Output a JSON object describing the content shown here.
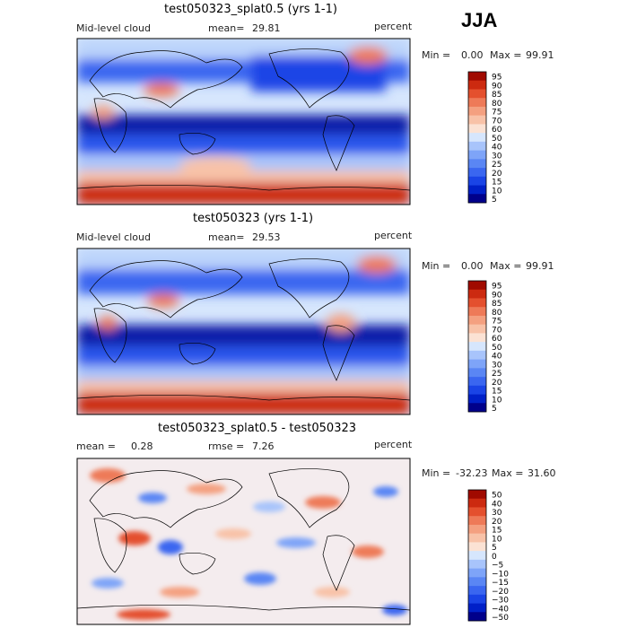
{
  "season": "JJA",
  "panels": [
    {
      "title": "test050323_splat0.5 (yrs 1-1)",
      "left_label": "Mid-level cloud",
      "stat_label": "mean=",
      "stat_value": "29.81",
      "units": "percent",
      "min_label": "Min =",
      "min_value": "0.00",
      "max_label": "Max =",
      "max_value": "99.91",
      "colorbar_levels": [
        "95",
        "90",
        "85",
        "80",
        "75",
        "70",
        "60",
        "50",
        "40",
        "30",
        "25",
        "20",
        "15",
        "10",
        "5"
      ]
    },
    {
      "title": "test050323 (yrs 1-1)",
      "left_label": "Mid-level cloud",
      "stat_label": "mean=",
      "stat_value": "29.53",
      "units": "percent",
      "min_label": "Min =",
      "min_value": "0.00",
      "max_label": "Max =",
      "max_value": "99.91",
      "colorbar_levels": [
        "95",
        "90",
        "85",
        "80",
        "75",
        "70",
        "60",
        "50",
        "40",
        "30",
        "25",
        "20",
        "15",
        "10",
        "5"
      ]
    },
    {
      "title": "test050323_splat0.5 - test050323",
      "left_label": "mean =",
      "left_value": "0.28",
      "stat_label": "rmse =",
      "stat_value": "7.26",
      "units": "percent",
      "min_label": "Min =",
      "min_value": "-32.23",
      "max_label": "Max =",
      "max_value": "31.60",
      "colorbar_levels": [
        "50",
        "40",
        "30",
        "20",
        "15",
        "10",
        "5",
        "0",
        "−5",
        "−10",
        "−15",
        "−20",
        "−30",
        "−40",
        "−50"
      ]
    }
  ],
  "chart_data": [
    {
      "type": "heatmap",
      "title": "test050323_splat0.5 (yrs 1-1)",
      "variable": "Mid-level cloud",
      "units": "percent",
      "mean": 29.81,
      "min": 0.0,
      "max": 99.91,
      "levels": [
        5,
        10,
        15,
        20,
        25,
        30,
        40,
        50,
        60,
        70,
        75,
        80,
        85,
        90,
        95
      ]
    },
    {
      "type": "heatmap",
      "title": "test050323 (yrs 1-1)",
      "variable": "Mid-level cloud",
      "units": "percent",
      "mean": 29.53,
      "min": 0.0,
      "max": 99.91,
      "levels": [
        5,
        10,
        15,
        20,
        25,
        30,
        40,
        50,
        60,
        70,
        75,
        80,
        85,
        90,
        95
      ]
    },
    {
      "type": "heatmap",
      "title": "test050323_splat0.5 - test050323",
      "units": "percent",
      "mean": 0.28,
      "rmse": 7.26,
      "min": -32.23,
      "max": 31.6,
      "levels": [
        -50,
        -40,
        -30,
        -20,
        -15,
        -10,
        -5,
        0,
        5,
        10,
        15,
        20,
        30,
        40,
        50
      ]
    }
  ],
  "colors": {
    "scale": [
      "#00008b",
      "#0020c8",
      "#1a44e6",
      "#3a66f0",
      "#5a86f4",
      "#7ea4f8",
      "#a8c4fb",
      "#d6e6fd",
      "#fbe2d4",
      "#f8c2a8",
      "#f4a080",
      "#ee7a58",
      "#e4502e",
      "#cc2a10",
      "#a00a00"
    ]
  }
}
